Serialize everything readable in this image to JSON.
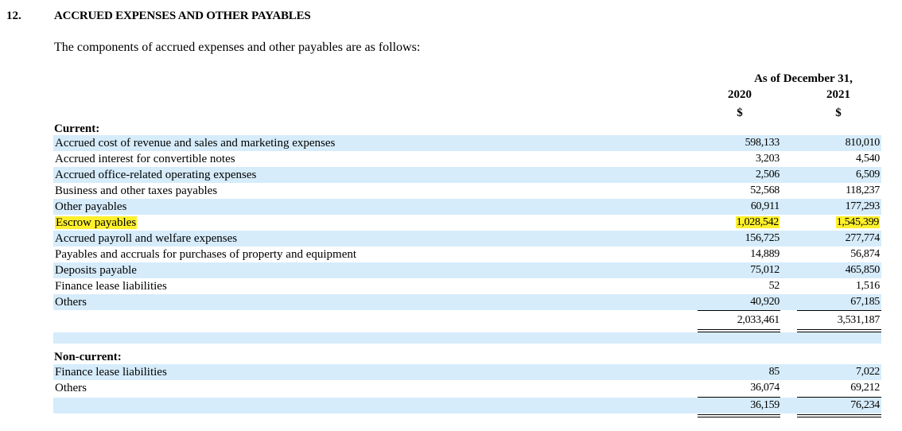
{
  "note": {
    "number": "12.",
    "title": "ACCRUED EXPENSES AND OTHER PAYABLES",
    "intro": "The components of accrued expenses and other payables are as follows:"
  },
  "header": {
    "as_of": "As of December 31,",
    "year_1": "2020",
    "year_2": "2021",
    "currency_1": "$",
    "currency_2": "$"
  },
  "current": {
    "heading": "Current:",
    "rows": [
      {
        "label": "Accrued cost of revenue and sales and marketing expenses",
        "v2020": "598,133",
        "v2021": "810,010"
      },
      {
        "label": "Accrued interest for convertible notes",
        "v2020": "3,203",
        "v2021": "4,540"
      },
      {
        "label": "Accrued office-related operating expenses",
        "v2020": "2,506",
        "v2021": "6,509"
      },
      {
        "label": "Business and other taxes payables",
        "v2020": "52,568",
        "v2021": "118,237"
      },
      {
        "label": "Other payables",
        "v2020": "60,911",
        "v2021": "177,293"
      },
      {
        "label": "Escrow payables",
        "v2020": "1,028,542",
        "v2021": "1,545,399",
        "highlighted": true
      },
      {
        "label": "Accrued payroll and welfare expenses",
        "v2020": "156,725",
        "v2021": "277,774"
      },
      {
        "label": "Payables and accruals for purchases of property and equipment",
        "v2020": "14,889",
        "v2021": "56,874"
      },
      {
        "label": "Deposits payable",
        "v2020": "75,012",
        "v2021": "465,850"
      },
      {
        "label": "Finance lease liabilities",
        "v2020": "52",
        "v2021": "1,516"
      },
      {
        "label": "Others",
        "v2020": "40,920",
        "v2021": "67,185"
      }
    ],
    "total_2020": "2,033,461",
    "total_2021": "3,531,187"
  },
  "noncurrent": {
    "heading": "Non-current:",
    "rows": [
      {
        "label": "Finance lease liabilities",
        "v2020": "85",
        "v2021": "7,022"
      },
      {
        "label": "Others",
        "v2020": "36,074",
        "v2021": "69,212"
      }
    ],
    "total_2020": "36,159",
    "total_2021": "76,234"
  },
  "colors": {
    "row_band": "#d6ecfb",
    "highlight": "#fef02c"
  }
}
